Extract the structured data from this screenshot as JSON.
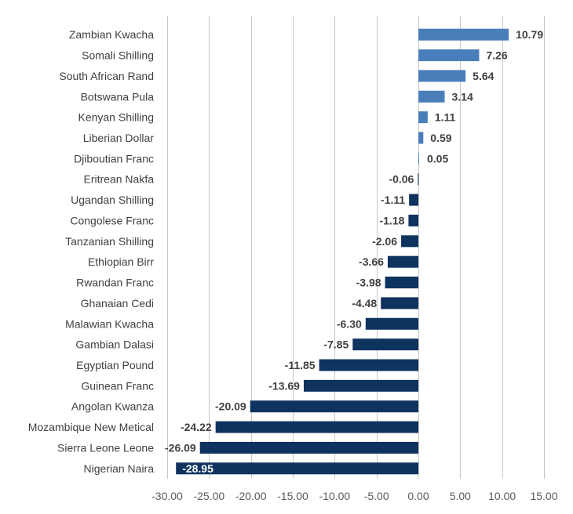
{
  "chart_data": {
    "type": "bar",
    "orientation": "horizontal",
    "categories": [
      "Zambian Kwacha",
      "Somali Shilling",
      "South African Rand",
      "Botswana Pula",
      "Kenyan Shilling",
      "Liberian Dollar",
      "Djiboutian Franc",
      "Eritrean Nakfa",
      "Ugandan Shilling",
      "Congolese Franc",
      "Tanzanian Shilling",
      "Ethiopian Birr",
      "Rwandan Franc",
      "Ghanaian Cedi",
      "Malawian Kwacha",
      "Gambian Dalasi",
      "Egyptian Pound",
      "Guinean Franc",
      "Angolan Kwanza",
      "Mozambique New Metical",
      "Sierra Leone Leone",
      "Nigerian Naira"
    ],
    "values": [
      10.79,
      7.26,
      5.64,
      3.14,
      1.11,
      0.59,
      0.05,
      -0.06,
      -1.11,
      -1.18,
      -2.06,
      -3.66,
      -3.98,
      -4.48,
      -6.3,
      -7.85,
      -11.85,
      -13.69,
      -20.09,
      -24.22,
      -26.09,
      -28.95
    ],
    "value_labels": [
      "10.79",
      "7.26",
      "5.64",
      "3.14",
      "1.11",
      "0.59",
      "0.05",
      "-0.06",
      "-1.11",
      "-1.18",
      "-2.06",
      "-3.66",
      "-3.98",
      "-4.48",
      "-6.30",
      "-7.85",
      "-11.85",
      "-13.69",
      "-20.09",
      "-24.22",
      "-26.09",
      "-28.95"
    ],
    "xlim": [
      -30,
      15
    ],
    "x_ticks": [
      -30,
      -25,
      -20,
      -15,
      -10,
      -5,
      0,
      5,
      10,
      15
    ],
    "x_tick_labels": [
      "-30.00",
      "-25.00",
      "-20.00",
      "-15.00",
      "-10.00",
      "-5.00",
      "0.00",
      "5.00",
      "10.00",
      "15.00"
    ],
    "title": "",
    "xlabel": "",
    "ylabel": "",
    "grid": "vertical",
    "legend": "none",
    "colors": {
      "positive": "#4a7ebb",
      "negative": "#0f335f"
    }
  }
}
